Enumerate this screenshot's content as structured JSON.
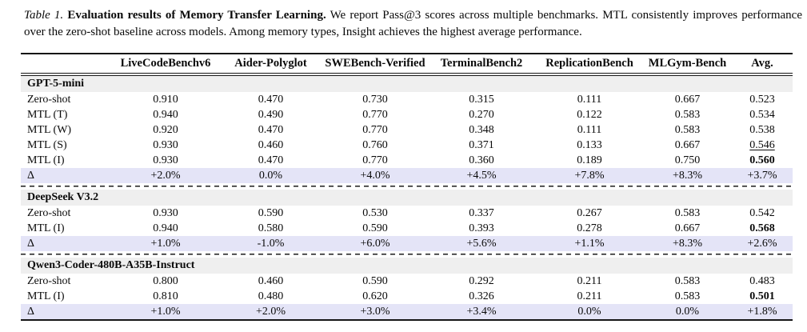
{
  "caption": {
    "tag": "Table 1.",
    "title": "Evaluation results of Memory Transfer Learning.",
    "body": "We report Pass@3 scores across multiple benchmarks. MTL consistently improves performance over the zero-shot baseline across models. Among memory types, Insight achieves the highest average performance."
  },
  "colors": {
    "section_header_bg": "#efefef",
    "delta_row_bg": "#e4e4f7",
    "rule": "#161616"
  },
  "table": {
    "columns": [
      "LiveCodeBenchv6",
      "Aider-Polyglot",
      "SWEBench-Verified",
      "TerminalBench2",
      "ReplicationBench",
      "MLGym-Bench",
      "Avg."
    ],
    "sections": [
      {
        "name": "GPT-5-mini",
        "rows": [
          {
            "label": "Zero-shot",
            "values": [
              "0.910",
              "0.470",
              "0.730",
              "0.315",
              "0.111",
              "0.667",
              "0.523"
            ],
            "avg_style": ""
          },
          {
            "label": "MTL (T)",
            "values": [
              "0.940",
              "0.490",
              "0.770",
              "0.270",
              "0.122",
              "0.583",
              "0.534"
            ],
            "avg_style": ""
          },
          {
            "label": "MTL (W)",
            "values": [
              "0.920",
              "0.470",
              "0.770",
              "0.348",
              "0.111",
              "0.583",
              "0.538"
            ],
            "avg_style": ""
          },
          {
            "label": "MTL (S)",
            "values": [
              "0.930",
              "0.460",
              "0.760",
              "0.371",
              "0.133",
              "0.667",
              "0.546"
            ],
            "avg_style": "underline"
          },
          {
            "label": "MTL (I)",
            "values": [
              "0.930",
              "0.470",
              "0.770",
              "0.360",
              "0.189",
              "0.750",
              "0.560"
            ],
            "avg_style": "bold"
          }
        ],
        "delta": {
          "label": "Δ",
          "values": [
            "+2.0%",
            "0.0%",
            "+4.0%",
            "+4.5%",
            "+7.8%",
            "+8.3%",
            "+3.7%"
          ]
        }
      },
      {
        "name": "DeepSeek V3.2",
        "rows": [
          {
            "label": "Zero-shot",
            "values": [
              "0.930",
              "0.590",
              "0.530",
              "0.337",
              "0.267",
              "0.583",
              "0.542"
            ],
            "avg_style": ""
          },
          {
            "label": "MTL (I)",
            "values": [
              "0.940",
              "0.580",
              "0.590",
              "0.393",
              "0.278",
              "0.667",
              "0.568"
            ],
            "avg_style": "bold"
          }
        ],
        "delta": {
          "label": "Δ",
          "values": [
            "+1.0%",
            "-1.0%",
            "+6.0%",
            "+5.6%",
            "+1.1%",
            "+8.3%",
            "+2.6%"
          ]
        }
      },
      {
        "name": "Qwen3-Coder-480B-A35B-Instruct",
        "rows": [
          {
            "label": "Zero-shot",
            "values": [
              "0.800",
              "0.460",
              "0.590",
              "0.292",
              "0.211",
              "0.583",
              "0.483"
            ],
            "avg_style": ""
          },
          {
            "label": "MTL (I)",
            "values": [
              "0.810",
              "0.480",
              "0.620",
              "0.326",
              "0.211",
              "0.583",
              "0.501"
            ],
            "avg_style": "bold"
          }
        ],
        "delta": {
          "label": "Δ",
          "values": [
            "+1.0%",
            "+2.0%",
            "+3.0%",
            "+3.4%",
            "0.0%",
            "0.0%",
            "+1.8%"
          ]
        }
      }
    ]
  }
}
